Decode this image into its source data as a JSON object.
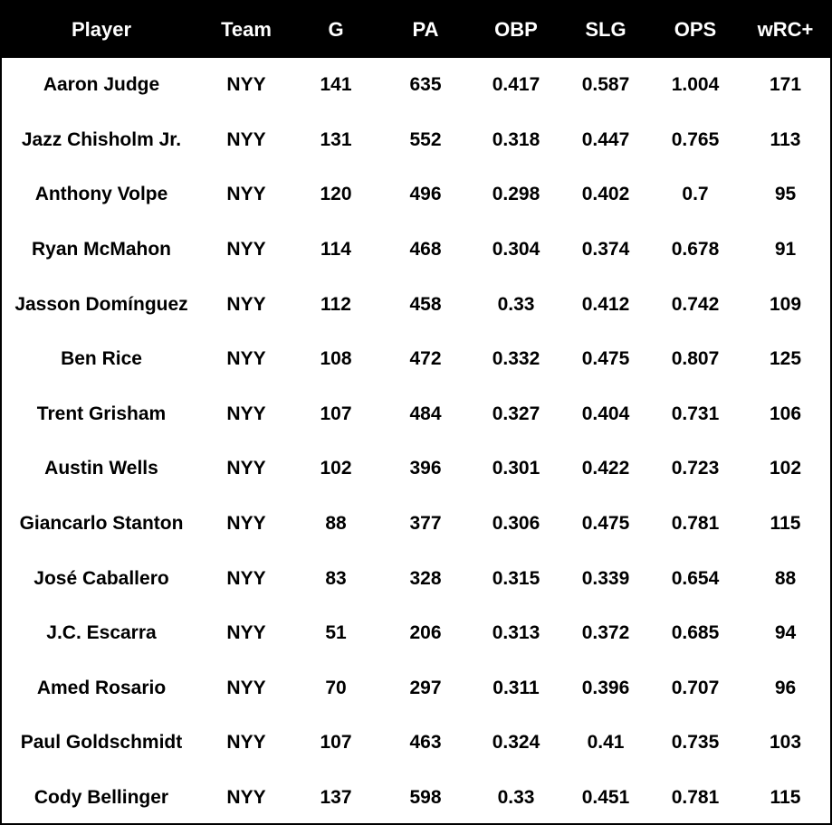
{
  "table": {
    "headers": [
      "Player",
      "Team",
      "G",
      "PA",
      "OBP",
      "SLG",
      "OPS",
      "wRC+"
    ],
    "rows": [
      [
        "Aaron Judge",
        "NYY",
        "141",
        "635",
        "0.417",
        "0.587",
        "1.004",
        "171"
      ],
      [
        "Jazz Chisholm Jr.",
        "NYY",
        "131",
        "552",
        "0.318",
        "0.447",
        "0.765",
        "113"
      ],
      [
        "Anthony Volpe",
        "NYY",
        "120",
        "496",
        "0.298",
        "0.402",
        "0.7",
        "95"
      ],
      [
        "Ryan McMahon",
        "NYY",
        "114",
        "468",
        "0.304",
        "0.374",
        "0.678",
        "91"
      ],
      [
        "Jasson Domínguez",
        "NYY",
        "112",
        "458",
        "0.33",
        "0.412",
        "0.742",
        "109"
      ],
      [
        "Ben Rice",
        "NYY",
        "108",
        "472",
        "0.332",
        "0.475",
        "0.807",
        "125"
      ],
      [
        "Trent Grisham",
        "NYY",
        "107",
        "484",
        "0.327",
        "0.404",
        "0.731",
        "106"
      ],
      [
        "Austin Wells",
        "NYY",
        "102",
        "396",
        "0.301",
        "0.422",
        "0.723",
        "102"
      ],
      [
        "Giancarlo Stanton",
        "NYY",
        "88",
        "377",
        "0.306",
        "0.475",
        "0.781",
        "115"
      ],
      [
        "José Caballero",
        "NYY",
        "83",
        "328",
        "0.315",
        "0.339",
        "0.654",
        "88"
      ],
      [
        "J.C. Escarra",
        "NYY",
        "51",
        "206",
        "0.313",
        "0.372",
        "0.685",
        "94"
      ],
      [
        "Amed Rosario",
        "NYY",
        "70",
        "297",
        "0.311",
        "0.396",
        "0.707",
        "96"
      ],
      [
        "Paul Goldschmidt",
        "NYY",
        "107",
        "463",
        "0.324",
        "0.41",
        "0.735",
        "103"
      ],
      [
        "Cody Bellinger",
        "NYY",
        "137",
        "598",
        "0.33",
        "0.451",
        "0.781",
        "115"
      ]
    ]
  },
  "colors": {
    "header_bg": "#000000",
    "header_text": "#ffffff",
    "body_bg": "#ffffff",
    "body_text": "#000000"
  }
}
